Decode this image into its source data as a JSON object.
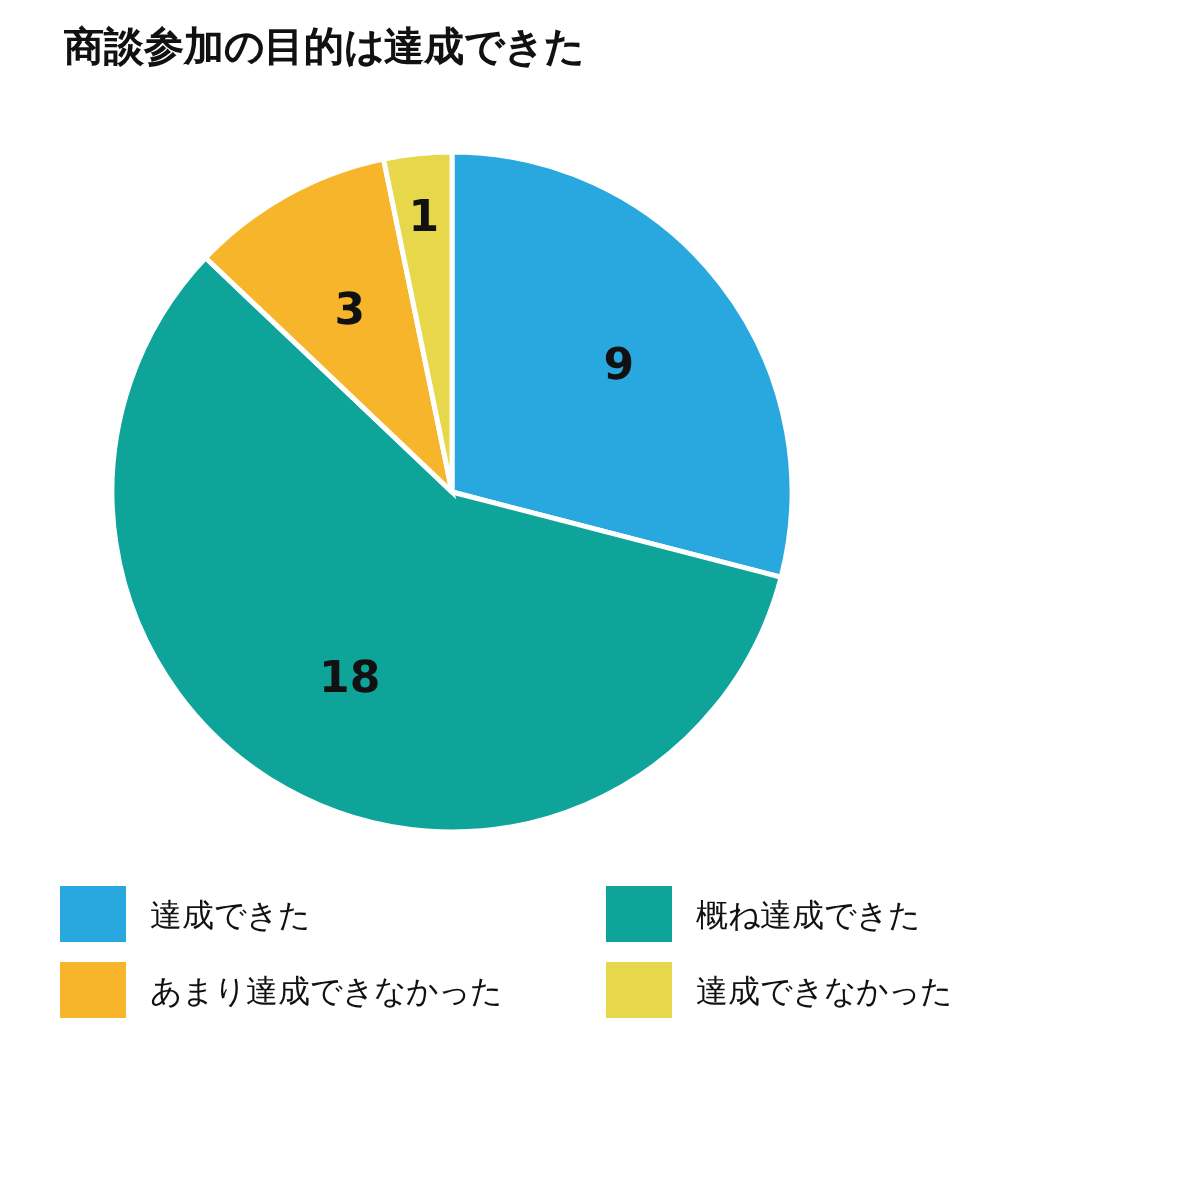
{
  "chart_data": {
    "type": "pie",
    "title": "商談参加の目的は達成できた",
    "categories": [
      "達成できた",
      "概ね達成できた",
      "あまり達成できなかった",
      "達成できなかった"
    ],
    "values": [
      9,
      18,
      3,
      1
    ],
    "colors": [
      "#29a8e0",
      "#0ea49a",
      "#f7b52c",
      "#e6d84a"
    ],
    "data_labels": true,
    "legend": "bottom"
  }
}
